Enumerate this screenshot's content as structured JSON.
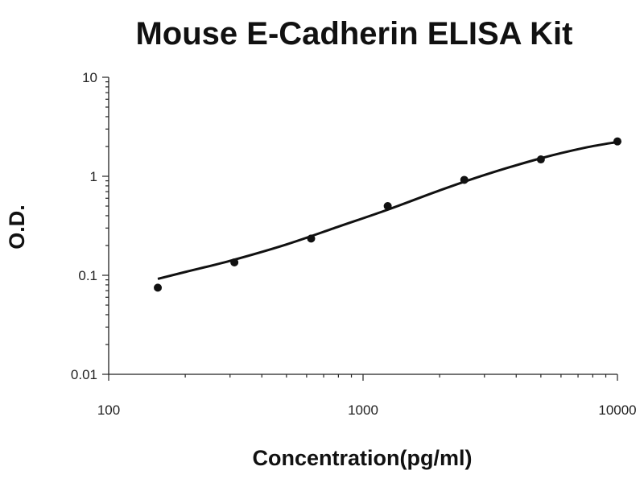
{
  "chart_data": {
    "type": "scatter",
    "title": "Mouse E-Cadherin ELISA Kit",
    "xlabel": "Concentration(pg/ml)",
    "ylabel": "O.D.",
    "x_scale": "log",
    "y_scale": "log",
    "xlim": [
      100,
      10000
    ],
    "ylim": [
      0.01,
      10
    ],
    "x_tick_labels": [
      "100",
      "1000",
      "10000"
    ],
    "y_tick_labels": [
      "10",
      "1",
      "0.1",
      "0.01"
    ],
    "grid": false,
    "series": [
      {
        "x": [
          156,
          312,
          625,
          1250,
          2500,
          5000,
          10000
        ],
        "y": [
          0.075,
          0.135,
          0.235,
          0.5,
          0.92,
          1.48,
          2.25
        ]
      }
    ],
    "fit_curve": {
      "x": [
        156,
        200,
        300,
        500,
        800,
        1250,
        2000,
        3000,
        5000,
        7500,
        10000
      ],
      "y": [
        0.092,
        0.108,
        0.14,
        0.205,
        0.31,
        0.46,
        0.72,
        1.03,
        1.52,
        1.95,
        2.22
      ]
    }
  }
}
